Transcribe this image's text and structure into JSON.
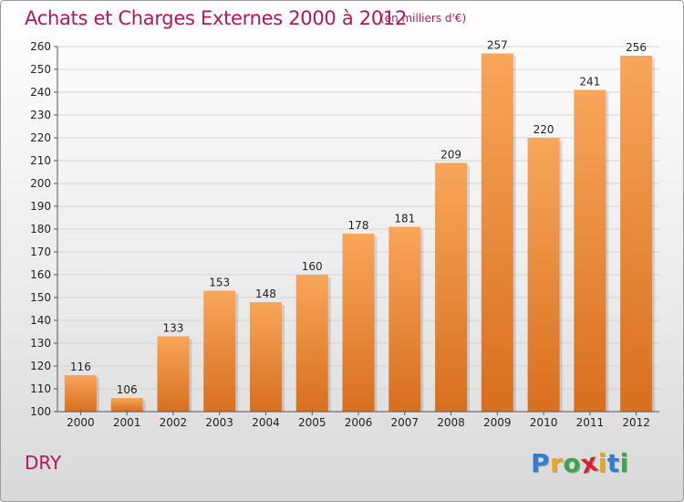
{
  "header": {
    "title": "Achats et Charges Externes 2000 à 2012",
    "subtitle": "(en milliers d'€)"
  },
  "footer": {
    "commune": "DRY",
    "logo_letters": [
      "P",
      "r",
      "o",
      "x",
      "i",
      "t",
      "i"
    ],
    "logo_colors": [
      "#2f7fd0",
      "#e6a81c",
      "#3aa64a",
      "#d2262b",
      "#e6a81c",
      "#2f7fd0",
      "#3aa64a"
    ]
  },
  "colors": {
    "bar_light": "#f8a65a",
    "bar_dark": "#d86f1e",
    "grid": "#d4d4d4",
    "axis": "#555555"
  },
  "chart_data": {
    "type": "bar",
    "categories": [
      "2000",
      "2001",
      "2002",
      "2003",
      "2004",
      "2005",
      "2006",
      "2007",
      "2008",
      "2009",
      "2010",
      "2011",
      "2012"
    ],
    "values": [
      116,
      106,
      133,
      153,
      148,
      160,
      178,
      181,
      209,
      257,
      220,
      241,
      256
    ],
    "ylim": [
      100,
      260
    ],
    "yticks": [
      100,
      110,
      120,
      130,
      140,
      150,
      160,
      170,
      180,
      190,
      200,
      210,
      220,
      230,
      240,
      250,
      260
    ],
    "grid": true,
    "data_labels": true
  }
}
